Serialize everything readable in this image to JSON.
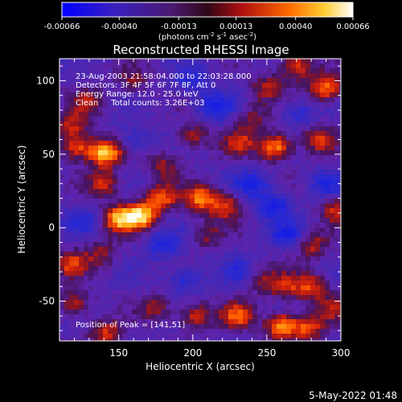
{
  "chart_data": {
    "type": "heatmap",
    "title": "Reconstructed RHESSI Image",
    "xlabel": "Heliocentric X (arcsec)",
    "ylabel": "Heliocentric Y (arcsec)",
    "xlim": [
      110,
      300
    ],
    "ylim": [
      -77,
      115
    ],
    "x_ticks": [
      "150",
      "200",
      "250",
      "300"
    ],
    "y_ticks": [
      "100",
      "50",
      "0",
      "-50"
    ],
    "colorbar": {
      "tick_labels": [
        "-0.00066",
        "-0.00040",
        "-0.00013",
        "0.00013",
        "0.00040",
        "0.00066"
      ],
      "unit_label_parts": [
        "(photons cm",
        "-2",
        " s",
        "-1",
        " asec",
        "-2",
        ")"
      ],
      "range": [
        -0.00066,
        0.00066
      ]
    },
    "annotations": [
      "23-Aug-2003 21:58:04.000 to 22:03:28.000",
      "Detectors: 3F 4F 5F 6F 7F 8F, Att 0",
      "Energy Range: 12.0 - 25.0 keV",
      "Clean     Total counts: 3.26E+03"
    ],
    "peak_label": "Position of Peak = [141,51]",
    "peak_position": [
      141,
      51
    ],
    "colormap_colors": [
      "#0000ff",
      "#3a1a8c",
      "#5a1fa0",
      "#8a1a2a",
      "#c81e0a",
      "#ff5a00",
      "#ffb000",
      "#ffee88",
      "#ffffff"
    ],
    "blobs": [
      {
        "x": 141,
        "y": 51,
        "value": 1.0
      },
      {
        "x": 165,
        "y": 8,
        "value": 0.95
      },
      {
        "x": 150,
        "y": 6,
        "value": 0.85
      },
      {
        "x": 178,
        "y": 20,
        "value": 0.7
      },
      {
        "x": 205,
        "y": 20,
        "value": 0.75
      },
      {
        "x": 222,
        "y": 15,
        "value": 0.6
      },
      {
        "x": 140,
        "y": 30,
        "value": 0.55
      },
      {
        "x": 122,
        "y": 55,
        "value": 0.65
      },
      {
        "x": 118,
        "y": 70,
        "value": 0.5
      },
      {
        "x": 130,
        "y": 85,
        "value": 0.4
      },
      {
        "x": 270,
        "y": 110,
        "value": 0.65
      },
      {
        "x": 290,
        "y": 95,
        "value": 0.8
      },
      {
        "x": 250,
        "y": 95,
        "value": 0.45
      },
      {
        "x": 285,
        "y": 60,
        "value": 0.55
      },
      {
        "x": 256,
        "y": 55,
        "value": 0.85
      },
      {
        "x": 232,
        "y": 58,
        "value": 0.5
      },
      {
        "x": 200,
        "y": 62,
        "value": 0.45
      },
      {
        "x": 180,
        "y": 42,
        "value": 0.4
      },
      {
        "x": 298,
        "y": 12,
        "value": 0.55
      },
      {
        "x": 280,
        "y": -12,
        "value": 0.5
      },
      {
        "x": 262,
        "y": -40,
        "value": 0.5
      },
      {
        "x": 280,
        "y": -40,
        "value": 0.6
      },
      {
        "x": 245,
        "y": -35,
        "value": 0.35
      },
      {
        "x": 230,
        "y": -60,
        "value": 0.65
      },
      {
        "x": 202,
        "y": -60,
        "value": 0.55
      },
      {
        "x": 175,
        "y": -55,
        "value": 0.4
      },
      {
        "x": 260,
        "y": -67,
        "value": 0.85
      },
      {
        "x": 278,
        "y": -68,
        "value": 0.6
      },
      {
        "x": 142,
        "y": -72,
        "value": 0.55
      },
      {
        "x": 120,
        "y": -52,
        "value": 0.5
      },
      {
        "x": 118,
        "y": -25,
        "value": 0.55
      },
      {
        "x": 138,
        "y": -18,
        "value": 0.4
      },
      {
        "x": 210,
        "y": -5,
        "value": 0.35
      },
      {
        "x": 240,
        "y": 75,
        "value": 0.35
      },
      {
        "x": 160,
        "y": 100,
        "value": 0.35
      },
      {
        "x": 295,
        "y": -55,
        "value": 0.4
      }
    ],
    "cold": [
      {
        "x": 255,
        "y": 15,
        "value": 1.0
      },
      {
        "x": 240,
        "y": 30,
        "value": 0.9
      },
      {
        "x": 215,
        "y": 82,
        "value": 1.0
      },
      {
        "x": 200,
        "y": 100,
        "value": 0.7
      },
      {
        "x": 180,
        "y": -12,
        "value": 0.8
      },
      {
        "x": 265,
        "y": -5,
        "value": 0.9
      },
      {
        "x": 232,
        "y": -30,
        "value": 0.6
      },
      {
        "x": 290,
        "y": 30,
        "value": 0.7
      },
      {
        "x": 160,
        "y": 60,
        "value": 0.6
      },
      {
        "x": 125,
        "y": 5,
        "value": 0.5
      },
      {
        "x": 195,
        "y": -35,
        "value": 0.7
      },
      {
        "x": 272,
        "y": 78,
        "value": 0.6
      }
    ]
  },
  "footer": {
    "timestamp": "5-May-2022 01:48"
  }
}
